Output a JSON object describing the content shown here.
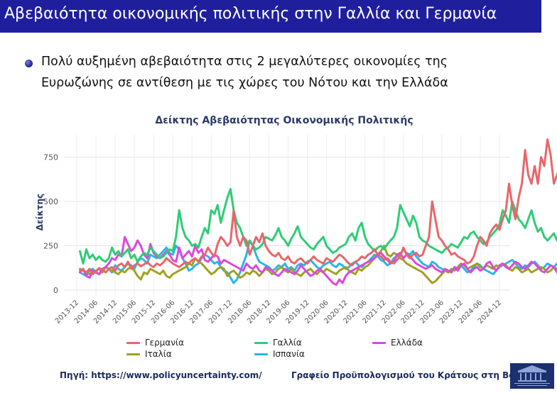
{
  "slide": {
    "title": "Αβεβαιότητα οικονομικής πολιτικής στην Γαλλία και Γερμανία",
    "bullet": "Πολύ αυξημένη αβεβαιότητα στις 2 μεγαλύτερες οικονομίες της Ευρωζώνης σε αντίθεση με τις χώρες του Νότου και την Ελλάδα",
    "source": "Πηγή: https://www.policyuncertainty.com/",
    "office": "Γραφείο Προϋπολογισμού του Κράτους στη Βουλή"
  },
  "chart_data": {
    "type": "line",
    "title": "Δείκτης Αβεβαιότητας Οικονομικής Πολιτικής",
    "xlabel": "",
    "ylabel": "Δείκτης",
    "ylim": [
      0,
      900
    ],
    "yticks": [
      0,
      250,
      500,
      750
    ],
    "grid": true,
    "legend_position": "bottom",
    "xticks": [
      "2013-12",
      "2014-06",
      "2014-12",
      "2015-06",
      "2015-12",
      "2016-06",
      "2016-12",
      "2017-06",
      "2017-12",
      "2018-06",
      "2018-12",
      "2019-06",
      "2019-12",
      "2020-06",
      "2020-12",
      "2021-06",
      "2021-12",
      "2022-06",
      "2022-12",
      "2023-06",
      "2023-12",
      "2024-06",
      "2024-12"
    ],
    "x_start": "2014-01",
    "series": [
      {
        "name": "Γερμανία",
        "color": "#e8666b",
        "values": [
          110,
          115,
          100,
          120,
          90,
          105,
          125,
          115,
          100,
          120,
          130,
          110,
          140,
          150,
          130,
          160,
          120,
          140,
          150,
          135,
          145,
          160,
          140,
          130,
          150,
          140,
          155,
          180,
          165,
          150,
          140,
          130,
          145,
          160,
          150,
          170,
          180,
          160,
          190,
          200,
          240,
          210,
          190,
          260,
          300,
          280,
          250,
          270,
          450,
          300,
          250,
          300,
          280,
          200,
          250,
          300,
          270,
          320,
          250,
          220,
          200,
          190,
          210,
          180,
          170,
          190,
          160,
          150,
          170,
          180,
          160,
          150,
          170,
          190,
          170,
          160,
          150,
          180,
          170,
          160,
          180,
          200,
          190,
          170,
          150,
          140,
          160,
          170,
          190,
          180,
          200,
          210,
          230,
          200,
          190,
          170,
          180,
          160,
          150,
          170,
          190,
          240,
          200,
          180,
          200,
          210,
          190,
          200,
          250,
          300,
          500,
          400,
          300,
          280,
          250,
          230,
          200,
          210,
          190,
          180,
          170,
          150,
          160,
          190,
          250,
          300,
          280,
          250,
          320,
          350,
          370,
          340,
          400,
          450,
          600,
          480,
          400,
          520,
          600,
          790,
          650,
          600,
          700,
          600,
          750,
          700,
          850,
          760,
          600,
          650,
          700,
          500,
          600,
          400,
          450,
          620,
          550,
          500,
          650,
          750,
          700,
          650,
          620,
          700,
          730,
          700,
          600,
          650,
          640,
          720,
          860,
          700,
          550,
          800,
          900,
          930
        ]
      },
      {
        "name": "Γαλλία",
        "color": "#2ecc76",
        "values": [
          220,
          150,
          230,
          180,
          200,
          170,
          190,
          170,
          160,
          180,
          240,
          200,
          220,
          190,
          210,
          230,
          180,
          200,
          160,
          190,
          210,
          200,
          240,
          220,
          200,
          180,
          190,
          210,
          230,
          220,
          300,
          450,
          350,
          300,
          280,
          250,
          260,
          240,
          300,
          350,
          320,
          450,
          430,
          480,
          380,
          450,
          520,
          570,
          450,
          380,
          350,
          300,
          250,
          280,
          250,
          230,
          240,
          260,
          300,
          290,
          280,
          310,
          350,
          300,
          280,
          250,
          290,
          320,
          360,
          300,
          280,
          260,
          240,
          230,
          260,
          280,
          300,
          250,
          230,
          210,
          220,
          240,
          250,
          260,
          300,
          320,
          280,
          350,
          380,
          300,
          260,
          240,
          220,
          240,
          250,
          230,
          260,
          280,
          300,
          350,
          480,
          440,
          400,
          360,
          420,
          380,
          300,
          280,
          270,
          250,
          240,
          230,
          220,
          210,
          230,
          240,
          260,
          250,
          240,
          270,
          300,
          290,
          320,
          330,
          300,
          280,
          260,
          270,
          300,
          320,
          340,
          370,
          450,
          420,
          380,
          500,
          450,
          400,
          380,
          350,
          400,
          450,
          380,
          330,
          350,
          300,
          280,
          300,
          320,
          280,
          350,
          300,
          270,
          250,
          260,
          280,
          290,
          300,
          310,
          280,
          260,
          290,
          310,
          330,
          320,
          300,
          280,
          250,
          300,
          380,
          540,
          450,
          380,
          400,
          350,
          320,
          480
        ]
      },
      {
        "name": "Ελλάδα",
        "color": "#d94adb",
        "values": [
          100,
          120,
          80,
          70,
          110,
          100,
          90,
          120,
          130,
          150,
          180,
          170,
          200,
          190,
          300,
          260,
          220,
          240,
          280,
          250,
          200,
          180,
          260,
          210,
          190,
          180,
          200,
          220,
          200,
          170,
          160,
          240,
          180,
          200,
          220,
          190,
          250,
          210,
          230,
          170,
          160,
          180,
          200,
          190,
          150,
          170,
          160,
          150,
          140,
          130,
          120,
          110,
          150,
          130,
          120,
          140,
          110,
          100,
          130,
          120,
          110,
          90,
          80,
          100,
          120,
          110,
          100,
          90,
          110,
          140,
          120,
          100,
          80,
          90,
          110,
          120,
          100,
          80,
          60,
          40,
          30,
          60,
          40,
          80,
          100,
          110,
          120,
          130,
          140,
          150,
          160,
          170,
          180,
          200,
          210,
          190,
          170,
          150,
          160,
          200,
          210,
          180,
          200,
          190,
          170,
          150,
          140,
          130,
          120,
          130,
          140,
          120,
          110,
          100,
          120,
          110,
          100,
          130,
          110,
          140,
          150,
          120,
          100,
          120,
          130,
          110,
          120,
          150,
          160,
          130,
          110,
          140,
          150,
          130,
          120,
          140,
          160,
          150,
          130,
          120,
          140,
          160,
          150,
          130,
          110,
          100,
          120,
          140,
          130,
          100,
          80,
          90,
          110,
          130,
          120,
          100,
          90,
          110,
          150,
          120,
          100,
          130,
          120,
          100,
          90,
          110,
          130,
          120,
          100
        ]
      },
      {
        "name": "Ιταλία",
        "color": "#a0a020",
        "values": [
          120,
          110,
          100,
          90,
          100,
          110,
          120,
          100,
          130,
          120,
          110,
          100,
          90,
          110,
          100,
          120,
          130,
          110,
          80,
          60,
          100,
          90,
          120,
          110,
          100,
          90,
          110,
          80,
          70,
          90,
          100,
          110,
          120,
          130,
          150,
          140,
          180,
          160,
          150,
          130,
          110,
          90,
          100,
          120,
          130,
          120,
          80,
          100,
          110,
          90,
          70,
          80,
          100,
          90,
          110,
          100,
          80,
          100,
          120,
          110,
          90,
          100,
          120,
          130,
          110,
          100,
          120,
          100,
          90,
          80,
          100,
          110,
          120,
          100,
          90,
          110,
          100,
          120,
          110,
          100,
          90,
          110,
          120,
          130,
          110,
          100,
          90,
          120,
          110,
          130,
          140,
          160,
          180,
          200,
          220,
          250,
          200,
          190,
          210,
          200,
          180,
          170,
          150,
          140,
          130,
          120,
          110,
          100,
          80,
          60,
          40,
          50,
          70,
          90,
          110,
          100,
          120,
          110,
          130,
          150,
          140,
          120,
          130,
          140,
          150,
          130,
          120,
          140,
          130,
          120,
          140,
          130,
          150,
          140,
          120,
          110,
          130,
          120,
          100,
          110,
          120,
          100,
          110,
          120,
          130,
          120,
          100,
          110,
          130,
          120,
          100,
          120,
          110,
          100,
          80,
          100,
          110,
          120,
          130,
          120,
          110,
          100,
          120,
          130,
          140,
          120
        ]
      },
      {
        "name": "Ισπανία",
        "color": "#29b6e6",
        "values": [
          100,
          90,
          80,
          110,
          120,
          100,
          90,
          110,
          130,
          120,
          100,
          140,
          120,
          110,
          130,
          150,
          140,
          120,
          160,
          180,
          170,
          150,
          200,
          190,
          180,
          200,
          220,
          240,
          210,
          200,
          250,
          230,
          180,
          150,
          110,
          120,
          140,
          150,
          180,
          200,
          190,
          170,
          150,
          160,
          130,
          110,
          100,
          70,
          40,
          60,
          100,
          150,
          200,
          280,
          250,
          200,
          160,
          150,
          140,
          130,
          110,
          120,
          140,
          130,
          150,
          120,
          130,
          110,
          140,
          150,
          140,
          160,
          170,
          150,
          130,
          120,
          140,
          150,
          160,
          140,
          130,
          150,
          140,
          120,
          130,
          150,
          160,
          140,
          130,
          150,
          160,
          180,
          200,
          190,
          170,
          160,
          140,
          150,
          180,
          190,
          200,
          230,
          210,
          200,
          220,
          190,
          170,
          150,
          140,
          130,
          160,
          150,
          130,
          120,
          110,
          100,
          110,
          120,
          130,
          140,
          120,
          100,
          110,
          130,
          150,
          140,
          120,
          110,
          100,
          90,
          110,
          130,
          140,
          150,
          160,
          170,
          150,
          130,
          120,
          140,
          130,
          150,
          160,
          140,
          120,
          130,
          150,
          140,
          130,
          150,
          120,
          100,
          110,
          130,
          140,
          120,
          110,
          100,
          130,
          140,
          150,
          130,
          120,
          140,
          150,
          130,
          110,
          120,
          140,
          130,
          150,
          140,
          130
        ]
      }
    ]
  }
}
